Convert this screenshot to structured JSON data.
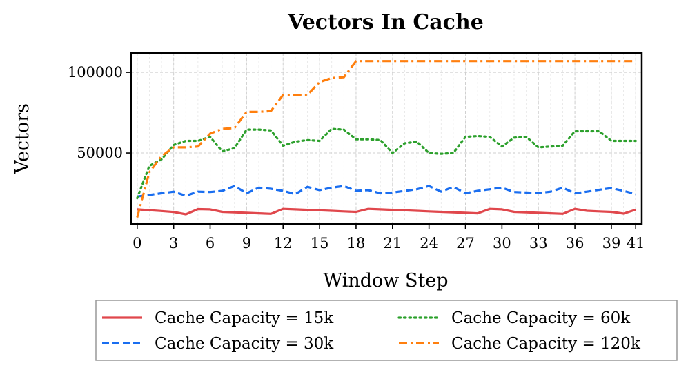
{
  "chart_data": {
    "type": "line",
    "title": "Vectors In Cache",
    "xlabel": "Window Step",
    "ylabel": "Vectors",
    "xlim": [
      -0.5,
      41.5
    ],
    "ylim": [
      6000,
      112000
    ],
    "xticks": [
      0,
      3,
      6,
      9,
      12,
      15,
      18,
      21,
      24,
      27,
      30,
      33,
      36,
      39,
      41
    ],
    "xtick_labels": [
      "0",
      "3",
      "6",
      "9",
      "12",
      "15",
      "18",
      "21",
      "24",
      "27",
      "30",
      "33",
      "36",
      "39",
      "41"
    ],
    "yticks": [
      50000,
      100000
    ],
    "ytick_labels": [
      "50000",
      "100000"
    ],
    "grid": true,
    "legend": {
      "placement": "bottom",
      "columns": 2
    },
    "x": [
      0,
      1,
      2,
      3,
      4,
      5,
      6,
      7,
      8,
      9,
      10,
      11,
      12,
      13,
      14,
      15,
      16,
      17,
      18,
      19,
      20,
      21,
      22,
      23,
      24,
      25,
      26,
      27,
      28,
      29,
      30,
      31,
      32,
      33,
      34,
      35,
      36,
      37,
      38,
      39,
      40,
      41
    ],
    "series": [
      {
        "name": "Cache Capacity = 15k",
        "color": "#e0474c",
        "dash": "solid",
        "values": [
          15000,
          14500,
          14000,
          13400,
          12000,
          15200,
          15000,
          13500,
          13200,
          12900,
          12600,
          12300,
          15300,
          15000,
          14700,
          14400,
          14100,
          13800,
          13500,
          15300,
          15000,
          14700,
          14400,
          14100,
          13800,
          13500,
          13200,
          12900,
          12600,
          15300,
          15000,
          13500,
          13200,
          12900,
          12600,
          12300,
          15300,
          14100,
          13800,
          13500,
          12400,
          14800
        ]
      },
      {
        "name": "Cache Capacity = 30k",
        "color": "#1a6ef0",
        "dash": "dashed",
        "values": [
          23000,
          24000,
          25000,
          26000,
          23500,
          26000,
          25800,
          26500,
          29500,
          25000,
          28500,
          27800,
          26500,
          24500,
          29000,
          27000,
          28500,
          29500,
          26500,
          27000,
          25000,
          25500,
          26500,
          27500,
          29500,
          26000,
          29000,
          25000,
          26500,
          27500,
          28500,
          25800,
          25500,
          25200,
          26000,
          28500,
          25000,
          26000,
          27200,
          28200,
          26500,
          24500
        ]
      },
      {
        "name": "Cache Capacity = 60k",
        "color": "#2ca02c",
        "dash": "dotted",
        "values": [
          22000,
          42000,
          46000,
          55000,
          57500,
          57500,
          60000,
          51000,
          53000,
          64500,
          64500,
          64000,
          54500,
          57000,
          58000,
          57500,
          65000,
          64500,
          58500,
          58500,
          58000,
          50000,
          56000,
          57000,
          50000,
          49500,
          50000,
          60000,
          60500,
          60000,
          54000,
          59500,
          60000,
          53500,
          54000,
          54500,
          63500,
          63500,
          63500,
          57500,
          57500,
          57500
        ]
      },
      {
        "name": "Cache Capacity = 120k",
        "color": "#ff7f0e",
        "dash": "dashdot",
        "values": [
          10000,
          38000,
          48000,
          53500,
          53500,
          54000,
          62000,
          65000,
          65500,
          75500,
          75500,
          76000,
          86000,
          86000,
          86000,
          94000,
          96500,
          97000,
          107000,
          107000,
          107000,
          107000,
          107000,
          107000,
          107000,
          107000,
          107000,
          107000,
          107000,
          107000,
          107000,
          107000,
          107000,
          107000,
          107000,
          107000,
          107000,
          107000,
          107000,
          107000,
          107000,
          107000
        ]
      }
    ]
  }
}
